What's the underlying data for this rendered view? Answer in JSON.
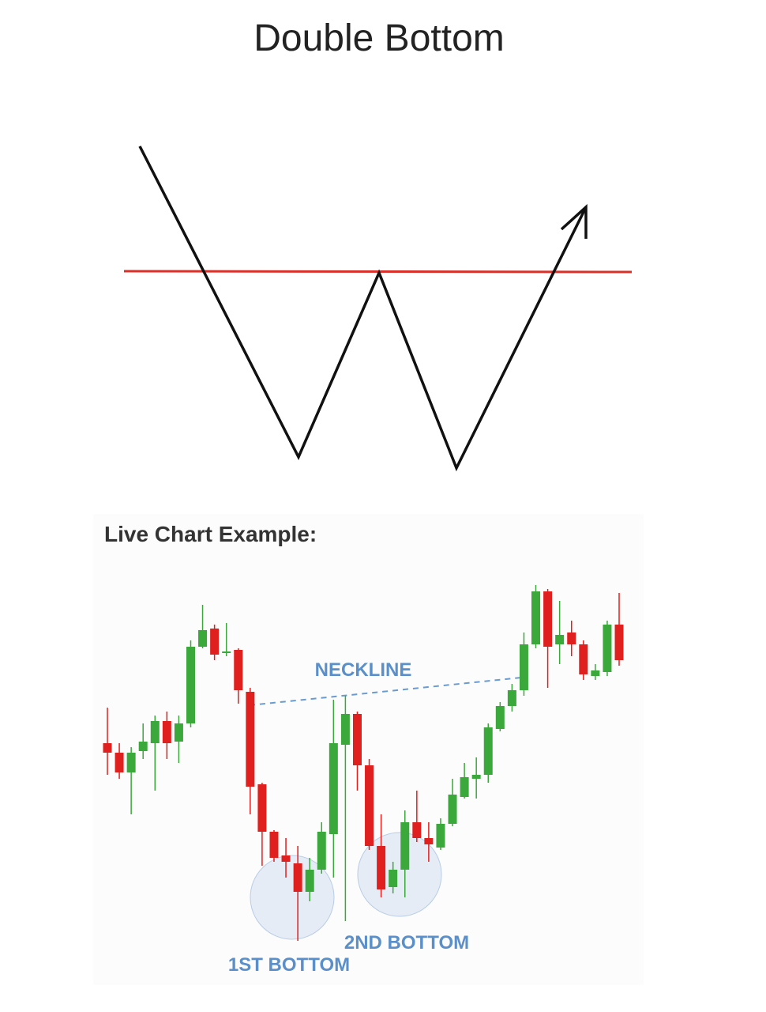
{
  "title": "Double Bottom",
  "subtitle": "Live Chart Example:",
  "chart_data": {
    "type": "candlestick",
    "annotations": [
      "NECKLINE",
      "1ST BOTTOM",
      "2ND BOTTOM"
    ],
    "up_color": "#3aa83a",
    "down_color": "#e0201f",
    "ylim": [
      0,
      520
    ],
    "open": [
      310,
      298,
      273,
      300,
      310,
      338,
      312,
      335,
      432,
      455,
      424,
      428,
      375,
      258,
      198,
      168,
      158,
      122,
      150,
      195,
      308,
      347,
      282,
      180,
      128,
      150,
      210,
      190,
      178,
      208,
      242,
      265,
      270,
      328,
      357,
      377,
      435,
      502,
      435,
      450,
      435,
      395,
      400,
      460
    ],
    "high": [
      355,
      310,
      305,
      335,
      345,
      350,
      345,
      440,
      485,
      460,
      462,
      430,
      380,
      260,
      200,
      190,
      180,
      165,
      210,
      365,
      370,
      350,
      290,
      220,
      160,
      225,
      250,
      210,
      215,
      265,
      285,
      292,
      335,
      362,
      385,
      450,
      510,
      505,
      490,
      465,
      440,
      410,
      465,
      500
    ],
    "low": [
      270,
      265,
      220,
      290,
      250,
      290,
      285,
      330,
      430,
      415,
      420,
      360,
      220,
      155,
      160,
      140,
      60,
      110,
      145,
      140,
      85,
      250,
      175,
      115,
      120,
      115,
      185,
      160,
      175,
      205,
      240,
      240,
      260,
      325,
      350,
      370,
      430,
      380,
      410,
      420,
      390,
      390,
      395,
      408
    ],
    "close": [
      298,
      273,
      298,
      312,
      338,
      310,
      335,
      432,
      453,
      422,
      426,
      377,
      255,
      198,
      165,
      160,
      122,
      150,
      198,
      310,
      347,
      282,
      180,
      125,
      150,
      210,
      190,
      182,
      208,
      245,
      267,
      270,
      330,
      357,
      377,
      435,
      502,
      432,
      447,
      435,
      397,
      402,
      460,
      415
    ]
  }
}
